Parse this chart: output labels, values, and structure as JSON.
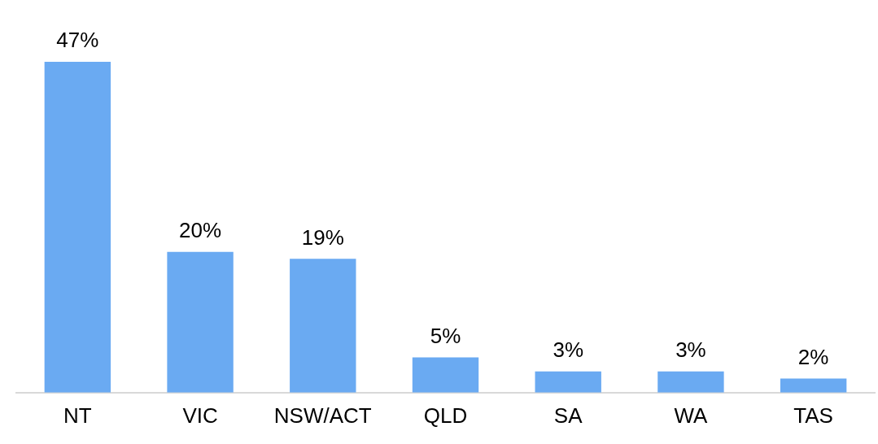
{
  "chart_data": {
    "type": "bar",
    "categories": [
      "NT",
      "VIC",
      "NSW/ACT",
      "QLD",
      "SA",
      "WA",
      "TAS"
    ],
    "values": [
      47,
      20,
      19,
      5,
      3,
      3,
      2
    ],
    "value_labels": [
      "47%",
      "20%",
      "19%",
      "5%",
      "3%",
      "3%",
      "2%"
    ],
    "color": "#6aaaf2",
    "grid": false,
    "legend": false,
    "tick_labels": "x"
  }
}
